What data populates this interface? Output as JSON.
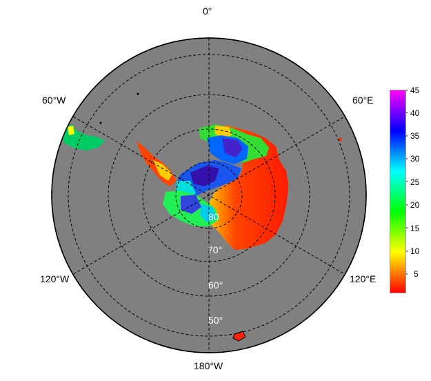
{
  "map": {
    "projection": "south polar stereographic",
    "ocean_color": "#808080",
    "meridian_labels": {
      "m0": "0°",
      "m60e": "60°E",
      "m120e": "120°E",
      "m180": "180°W",
      "m120w": "120°W",
      "m60w": "60°W"
    },
    "latitude_labels": {
      "p80": "80",
      "p70": "70°",
      "p60": "60°",
      "p50": "50°"
    },
    "graticule_style": "dashed"
  },
  "colorbar": {
    "min": 0,
    "max": 45,
    "ticks": [
      "45",
      "40",
      "35",
      "30",
      "25",
      "20",
      "15",
      "10",
      "5"
    ],
    "colormap": [
      "#ff0000",
      "#ff8000",
      "#ffff00",
      "#80ff00",
      "#00ff00",
      "#00ff80",
      "#00ffff",
      "#0080ff",
      "#0000ff",
      "#8000ff",
      "#ff00ff"
    ]
  }
}
